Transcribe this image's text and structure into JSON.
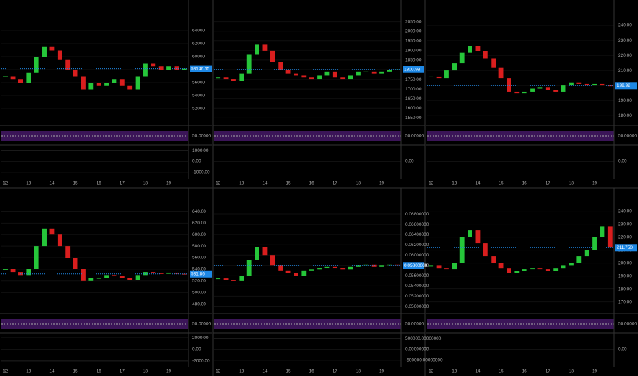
{
  "chart_data": [
    {
      "type": "candle",
      "categories": [
        "12",
        null,
        null,
        "13",
        null,
        null,
        "14",
        null,
        null,
        "15",
        null,
        null,
        "16",
        null,
        null,
        "17",
        null,
        null,
        "18",
        null,
        null,
        "19",
        null,
        null
      ],
      "values": [
        57000,
        56500,
        56000,
        57500,
        60000,
        61500,
        61000,
        59500,
        58000,
        57000,
        55000,
        56000,
        55500,
        56000,
        56500,
        55500,
        55000,
        57000,
        59000,
        58500,
        58000,
        58500,
        58000,
        58146.65
      ],
      "current_label": "58146.65",
      "ylim": [
        50000,
        66000
      ],
      "yticks": [
        52000,
        54000,
        56000,
        58000,
        60000,
        62000,
        64000
      ],
      "rsi_ticks": [
        {
          "value": 50,
          "label": "50.00000"
        }
      ],
      "rsi_lim": [
        0,
        100
      ],
      "macd_ticks": [
        {
          "value": 1000,
          "label": "1000.00"
        },
        {
          "value": 0,
          "label": "0.00"
        },
        {
          "value": -1000,
          "label": "-1000.00"
        }
      ],
      "macd_lim": [
        -1400,
        1400
      ]
    },
    {
      "type": "candle",
      "categories": [
        "12",
        null,
        null,
        "13",
        null,
        null,
        "14",
        null,
        null,
        "15",
        null,
        null,
        "16",
        null,
        null,
        "17",
        null,
        null,
        "18",
        null,
        null,
        "19",
        null,
        null
      ],
      "values": [
        1760,
        1750,
        1740,
        1780,
        1880,
        1930,
        1900,
        1840,
        1800,
        1780,
        1770,
        1760,
        1750,
        1770,
        1790,
        1760,
        1750,
        1770,
        1790,
        1790,
        1780,
        1790,
        1800,
        1800.98
      ],
      "current_label": "1800.98",
      "ylim": [
        1530,
        2070
      ],
      "yticks": [
        {
          "value": 1550,
          "label": "1550.00"
        },
        {
          "value": 1600,
          "label": "1600.00"
        },
        {
          "value": 1650,
          "label": "1650.00"
        },
        {
          "value": 1700,
          "label": "1700.00"
        },
        {
          "value": 1750,
          "label": "1750.00"
        },
        {
          "value": 1800,
          "label": "1800.00"
        },
        {
          "value": 1850,
          "label": "1850.00"
        },
        {
          "value": 1900,
          "label": "1900.00"
        },
        {
          "value": 1950,
          "label": "1950.00"
        },
        {
          "value": 2000,
          "label": "2000.00"
        },
        {
          "value": 2050,
          "label": "2050.00"
        }
      ],
      "rsi_ticks": [
        {
          "value": 50,
          "label": "50.00000"
        }
      ],
      "rsi_lim": [
        0,
        100
      ],
      "macd_ticks": [
        {
          "value": 0,
          "label": "0.00"
        }
      ],
      "macd_lim": [
        -1,
        1
      ]
    },
    {
      "type": "candle",
      "categories": [
        "12",
        null,
        null,
        "13",
        null,
        null,
        "14",
        null,
        null,
        "15",
        null,
        null,
        "16",
        null,
        null,
        "17",
        null,
        null,
        "18",
        null,
        null,
        "19",
        null,
        null
      ],
      "values": [
        206,
        205,
        210,
        215,
        222,
        226,
        223,
        218,
        212,
        205,
        196,
        195,
        196,
        198,
        199,
        197,
        196,
        200,
        202,
        201,
        200,
        201,
        200,
        199.92
      ],
      "current_label": "199.92",
      "ylim": [
        176,
        245
      ],
      "yticks": [
        {
          "value": 180,
          "label": "180.00"
        },
        {
          "value": 190,
          "label": "190.00"
        },
        {
          "value": 200,
          "label": "200.00"
        },
        {
          "value": 210,
          "label": "210.00"
        },
        {
          "value": 220,
          "label": "220.00"
        },
        {
          "value": 230,
          "label": "230.00"
        },
        {
          "value": 240,
          "label": "240.00"
        }
      ],
      "rsi_ticks": [
        {
          "value": 50,
          "label": "50.00000"
        }
      ],
      "rsi_lim": [
        0,
        100
      ],
      "macd_ticks": [
        {
          "value": 0,
          "label": "0.00"
        }
      ],
      "macd_lim": [
        -1,
        1
      ]
    },
    {
      "type": "candle",
      "categories": [
        "12",
        null,
        null,
        "13",
        null,
        null,
        "14",
        null,
        null,
        "15",
        null,
        null,
        "16",
        null,
        null,
        "17",
        null,
        null,
        "18",
        null,
        null,
        "19",
        null,
        null
      ],
      "values": [
        540,
        535,
        530,
        540,
        580,
        610,
        600,
        580,
        560,
        540,
        520,
        525,
        525,
        530,
        528,
        525,
        522,
        530,
        535,
        533,
        532,
        534,
        532,
        531.86
      ],
      "current_label": "531.86",
      "ylim": [
        470,
        650
      ],
      "yticks": [
        {
          "value": 480,
          "label": "480.00"
        },
        {
          "value": 500,
          "label": "500.00"
        },
        {
          "value": 520,
          "label": "520.00"
        },
        {
          "value": 540,
          "label": "540.00"
        },
        {
          "value": 560,
          "label": "560.00"
        },
        {
          "value": 580,
          "label": "580.00"
        },
        {
          "value": 600,
          "label": "600.00"
        },
        {
          "value": 620,
          "label": "620.00"
        },
        {
          "value": 640,
          "label": "640.00"
        }
      ],
      "rsi_ticks": [
        {
          "value": 50,
          "label": "50.00000"
        }
      ],
      "rsi_lim": [
        0,
        100
      ],
      "macd_ticks": [
        {
          "value": 2000,
          "label": "2000.00"
        },
        {
          "value": 0,
          "label": "0.00"
        },
        {
          "value": -2000,
          "label": "-2000.00"
        }
      ],
      "macd_lim": [
        -2600,
        2600
      ]
    },
    {
      "type": "candle",
      "categories": [
        "12",
        null,
        null,
        "13",
        null,
        null,
        "14",
        null,
        null,
        "15",
        null,
        null,
        "16",
        null,
        null,
        "17",
        null,
        null,
        "18",
        null,
        null,
        "19",
        null,
        null
      ],
      "values": [
        0.0555,
        0.0552,
        0.055,
        0.056,
        0.059,
        0.0615,
        0.06,
        0.058,
        0.057,
        0.0565,
        0.056,
        0.057,
        0.0572,
        0.0575,
        0.0578,
        0.0575,
        0.0572,
        0.0578,
        0.058,
        0.0582,
        0.0578,
        0.058,
        0.0582,
        0.058
      ],
      "current_label": "0.05800000",
      "ylim": [
        0.0494,
        0.0696
      ],
      "yticks": [
        {
          "value": 0.05,
          "label": "0.05000000"
        },
        {
          "value": 0.052,
          "label": "0.05200000"
        },
        {
          "value": 0.054,
          "label": "0.05400000"
        },
        {
          "value": 0.056,
          "label": "0.05600000"
        },
        {
          "value": 0.058,
          "label": "0.05800000"
        },
        {
          "value": 0.06,
          "label": "0.06000000"
        },
        {
          "value": 0.062,
          "label": "0.06200000"
        },
        {
          "value": 0.064,
          "label": "0.06400000"
        },
        {
          "value": 0.066,
          "label": "0.06600000"
        },
        {
          "value": 0.068,
          "label": "0.06800000"
        }
      ],
      "rsi_ticks": [
        {
          "value": 50,
          "label": "50.00000"
        }
      ],
      "rsi_lim": [
        0,
        100
      ],
      "macd_ticks": [
        {
          "value": 500000,
          "label": "500000.00000000"
        },
        {
          "value": 0,
          "label": "0.00000000"
        },
        {
          "value": -500000,
          "label": "-500000.00000000"
        }
      ],
      "macd_lim": [
        -700000,
        700000
      ]
    },
    {
      "type": "candle",
      "categories": [
        "12",
        null,
        null,
        "13",
        null,
        null,
        "14",
        null,
        null,
        "15",
        null,
        null,
        "16",
        null,
        null,
        "17",
        null,
        null,
        "18",
        null,
        null,
        "19",
        null,
        null
      ],
      "values": [
        198,
        196,
        195,
        200,
        220,
        225,
        215,
        205,
        200,
        196,
        192,
        194,
        195,
        196,
        195,
        194,
        196,
        198,
        200,
        205,
        210,
        220,
        228,
        211.75
      ],
      "current_label": "211.750",
      "ylim": [
        164,
        244
      ],
      "yticks": [
        {
          "value": 170,
          "label": "170.00"
        },
        {
          "value": 180,
          "label": "180.00"
        },
        {
          "value": 190,
          "label": "190.00"
        },
        {
          "value": 200,
          "label": "200.00"
        },
        {
          "value": 210,
          "label": "210.00"
        },
        {
          "value": 220,
          "label": "220.00"
        },
        {
          "value": 230,
          "label": "230.00"
        },
        {
          "value": 240,
          "label": "240.00"
        }
      ],
      "rsi_ticks": [
        {
          "value": 50,
          "label": "50.00000"
        }
      ],
      "rsi_lim": [
        0,
        100
      ],
      "macd_ticks": [
        {
          "value": 0,
          "label": "0.00"
        }
      ],
      "macd_lim": [
        -1,
        1
      ]
    }
  ]
}
